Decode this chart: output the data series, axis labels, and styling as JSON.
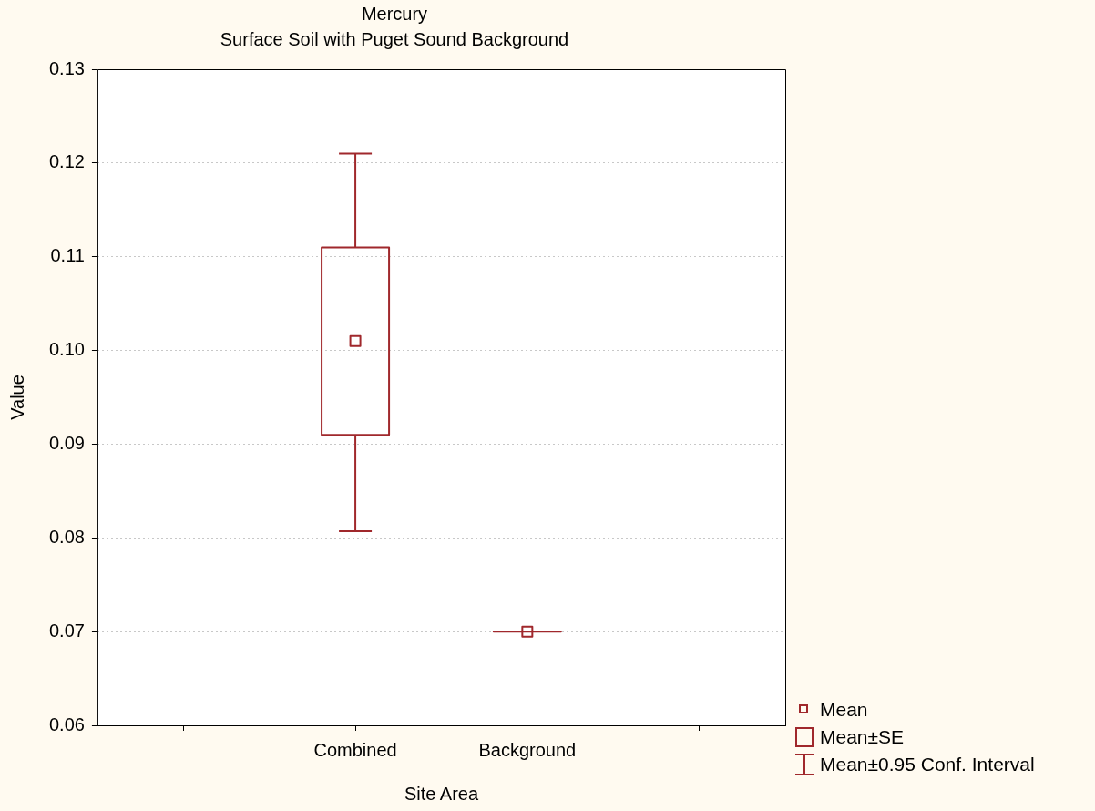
{
  "chart_data": {
    "type": "box",
    "title": "Mercury",
    "subtitle": "Surface Soil with Puget Sound Background",
    "xlabel": "Site Area",
    "ylabel": "Value",
    "categories": [
      null,
      "Combined",
      "Background",
      null
    ],
    "boxes": [
      null,
      {
        "low": 0.0807,
        "q1": 0.091,
        "q3": 0.111,
        "high": 0.121,
        "mean": 0.101
      },
      {
        "low": 0.07,
        "q1": 0.07,
        "q3": 0.07,
        "high": 0.07,
        "mean": 0.07
      },
      null
    ],
    "color": "#a0282c",
    "ylim": [
      0.06,
      0.13
    ],
    "yticks": [
      {
        "value": 0.06,
        "label": "0.06"
      },
      {
        "value": 0.07,
        "label": "0.07"
      },
      {
        "value": 0.08,
        "label": "0.08"
      },
      {
        "value": 0.09,
        "label": "0.09"
      },
      {
        "value": 0.1,
        "label": "0.10"
      },
      {
        "value": 0.11,
        "label": "0.11"
      },
      {
        "value": 0.12,
        "label": "0.12"
      },
      {
        "value": 0.13,
        "label": "0.13"
      }
    ],
    "grid": "y",
    "annotations": [
      "Mean",
      "Mean±SE",
      "Mean±0.95 Conf. Interval"
    ]
  }
}
